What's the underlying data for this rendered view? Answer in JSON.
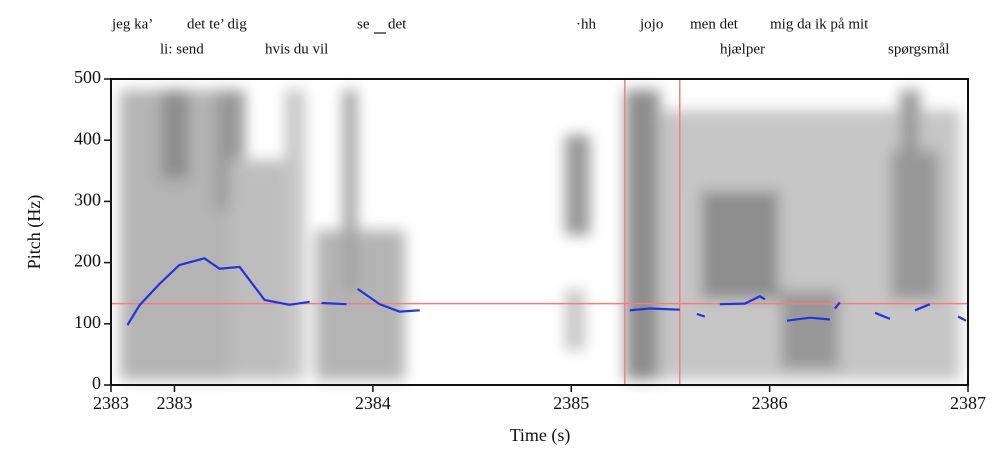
{
  "chart_data": {
    "type": "line",
    "annotations": [
      "jeg ka’",
      "det te’ dig",
      "se",
      "det",
      "·hh",
      "jojo",
      "men det",
      "mig da ik på mit",
      "li: send",
      "hvis du vil",
      "hjælper",
      "spørgsmål"
    ],
    "x_label": "Time (s)",
    "y_label": "Pitch (Hz)",
    "x": [
      2382.763,
      2382.823,
      2382.924,
      2383.025,
      2383.151,
      2383.227,
      2383.328,
      2383.454,
      2383.58,
      2383.681,
      null,
      2383.741,
      2383.867,
      null,
      2383.923,
      2384.034,
      2384.135,
      2384.236,
      null,
      2385.295,
      2385.396,
      2385.547,
      null,
      2385.633,
      2385.673,
      null,
      2385.749,
      2385.875,
      2385.951,
      2385.976,
      null,
      2386.087,
      2386.203,
      2386.304,
      null,
      2386.329,
      2386.354,
      null,
      2386.531,
      2386.607,
      null,
      2386.733,
      2386.808,
      null,
      2386.95,
      2386.99
    ],
    "series": [
      {
        "color": "#2233dd",
        "values": [
          98,
          130,
          165,
          196,
          207,
          190,
          193,
          139,
          131,
          136,
          null,
          134,
          132,
          null,
          157,
          132,
          120,
          122,
          null,
          122,
          125,
          123,
          null,
          116,
          112,
          null,
          132,
          133,
          145,
          140,
          null,
          105,
          110,
          107,
          null,
          125,
          135,
          null,
          118,
          108,
          null,
          122,
          132,
          null,
          112,
          105
        ]
      }
    ],
    "hlines": [
      133
    ],
    "vlines": [
      2385.27,
      2385.547
    ],
    "ref_color": "#f08080",
    "xlim": [
      2382.68,
      2387
    ],
    "ylim": [
      0,
      500
    ],
    "xticks": [
      {
        "value": 2382.68,
        "label": "2383"
      },
      2383,
      2384,
      2385,
      2386,
      2387
    ],
    "yticks": [
      0,
      100,
      200,
      300,
      400,
      500
    ]
  }
}
